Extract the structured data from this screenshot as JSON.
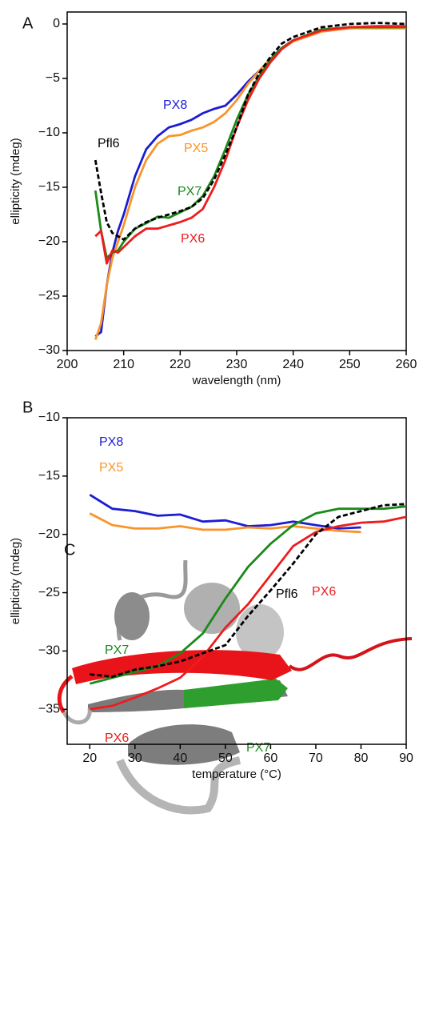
{
  "chart_data": [
    {
      "type": "line",
      "panel": "A",
      "xlabel": "wavelength (nm)",
      "ylabel": "ellipticity (mdeg)",
      "x": [
        205,
        206,
        207,
        208,
        209,
        210,
        212,
        214,
        216,
        218,
        220,
        222,
        224,
        226,
        228,
        230,
        232,
        234,
        236,
        238,
        240,
        245,
        250,
        255,
        260
      ],
      "xlim": [
        200,
        260
      ],
      "xticks": [
        200,
        210,
        220,
        230,
        240,
        250,
        260
      ],
      "ylim": [
        -30,
        1.1
      ],
      "yticks": [
        {
          "value": -30,
          "label": "−30"
        },
        {
          "value": -25,
          "label": "−25"
        },
        {
          "value": -20,
          "label": "−20"
        },
        {
          "value": -15,
          "label": "−15"
        },
        {
          "value": -10,
          "label": "−10"
        },
        {
          "value": -5,
          "label": "−5"
        },
        0
      ],
      "series": [
        {
          "name": "PX8",
          "color": "#1c1cd4",
          "dashed": false,
          "values": [
            -28.7,
            -28.3,
            -24,
            -21,
            -19,
            -17.5,
            -14,
            -11.5,
            -10.3,
            -9.5,
            -9.2,
            -8.8,
            -8.2,
            -7.8,
            -7.5,
            -6.5,
            -5.3,
            -4.3,
            -3.2,
            -2.2,
            -1.5,
            -0.6,
            -0.3,
            -0.3,
            -0.3
          ]
        },
        {
          "name": "PX5",
          "color": "#f7952b",
          "dashed": false,
          "values": [
            -29,
            -27.5,
            -24,
            -21.5,
            -20,
            -18.5,
            -15,
            -12.5,
            -11,
            -10.3,
            -10.2,
            -9.8,
            -9.5,
            -9,
            -8.2,
            -7,
            -5.5,
            -4.3,
            -3.2,
            -2.3,
            -1.6,
            -0.7,
            -0.4,
            -0.4,
            -0.4
          ]
        },
        {
          "name": "PX7",
          "color": "#1a8a1a",
          "dashed": false,
          "values": [
            -15.3,
            -19,
            -21.5,
            -21,
            -20.8,
            -20,
            -18.8,
            -18.3,
            -17.7,
            -17.8,
            -17.3,
            -16.8,
            -15.8,
            -14,
            -11.5,
            -8.8,
            -6.5,
            -4.8,
            -3.3,
            -2.2,
            -1.5,
            -0.5,
            -0.3,
            -0.3,
            -0.3
          ]
        },
        {
          "name": "PX6",
          "color": "#ee1c1c",
          "dashed": false,
          "values": [
            -19.5,
            -19,
            -22,
            -20.8,
            -21,
            -20.5,
            -19.5,
            -18.8,
            -18.8,
            -18.5,
            -18.2,
            -17.8,
            -17,
            -15,
            -12.5,
            -9.5,
            -7,
            -5,
            -3.5,
            -2.3,
            -1.5,
            -0.6,
            -0.3,
            -0.2,
            -0.2
          ]
        },
        {
          "name": "Pfl6",
          "color": "#000000",
          "dashed": true,
          "values": [
            -12.5,
            -15.5,
            -18.2,
            -19.2,
            -19.5,
            -19.8,
            -18.8,
            -18.2,
            -17.8,
            -17.5,
            -17.2,
            -16.8,
            -16,
            -14.3,
            -12,
            -9.5,
            -6.5,
            -4.5,
            -3,
            -1.8,
            -1.2,
            -0.3,
            0,
            0.1,
            0
          ]
        }
      ]
    },
    {
      "type": "line",
      "panel": "B",
      "xlabel": "temperature (°C)",
      "ylabel": "ellipticity (mdeg)",
      "x": [
        20,
        25,
        30,
        35,
        40,
        45,
        50,
        55,
        60,
        65,
        70,
        75,
        80,
        85,
        90
      ],
      "xlim": [
        15,
        90
      ],
      "xticks": [
        20,
        30,
        40,
        50,
        60,
        70,
        80,
        90
      ],
      "ylim": [
        -38,
        -10
      ],
      "yticks": [
        {
          "value": -35,
          "label": "−35"
        },
        {
          "value": -30,
          "label": "−30"
        },
        {
          "value": -25,
          "label": "−25"
        },
        {
          "value": -20,
          "label": "−20"
        },
        {
          "value": -15,
          "label": "−15"
        },
        {
          "value": -10,
          "label": "−10"
        }
      ],
      "series": [
        {
          "name": "PX8",
          "color": "#1c1cd4",
          "dashed": false,
          "values": [
            -16.6,
            -17.8,
            -18,
            -18.4,
            -18.3,
            -18.9,
            -18.8,
            -19.3,
            -19.2,
            -18.9,
            -19.2,
            -19.5,
            -19.4,
            null,
            null
          ]
        },
        {
          "name": "PX5",
          "color": "#f7952b",
          "dashed": false,
          "values": [
            -18.2,
            -19.2,
            -19.5,
            -19.5,
            -19.3,
            -19.6,
            -19.6,
            -19.4,
            -19.5,
            -19.3,
            -19.5,
            -19.7,
            -19.8,
            null,
            null
          ]
        },
        {
          "name": "PX7",
          "color": "#1a8a1a",
          "dashed": false,
          "values": [
            -32.8,
            -32.3,
            -31.8,
            -31.3,
            -30.2,
            -28.5,
            -25.5,
            -22.8,
            -20.8,
            -19.2,
            -18.2,
            -17.8,
            -17.8,
            -17.8,
            -17.6
          ]
        },
        {
          "name": "PX6",
          "color": "#ee1c1c",
          "dashed": false,
          "values": [
            -35,
            -34.7,
            -34,
            -33.2,
            -32.3,
            -30.5,
            -28,
            -26,
            -23.5,
            -21,
            -19.8,
            -19.3,
            -19,
            -18.9,
            -18.5
          ]
        },
        {
          "name": "Pfl6",
          "color": "#000000",
          "dashed": true,
          "values": [
            -32,
            -32.2,
            -31.6,
            -31.3,
            -30.9,
            -30.2,
            -29.5,
            -27,
            -24.8,
            -22.5,
            -20,
            -18.5,
            -18,
            -17.5,
            -17.4
          ]
        }
      ]
    }
  ],
  "panel_c": {
    "label": "C",
    "labels": [
      "PX6",
      "PX7"
    ]
  }
}
